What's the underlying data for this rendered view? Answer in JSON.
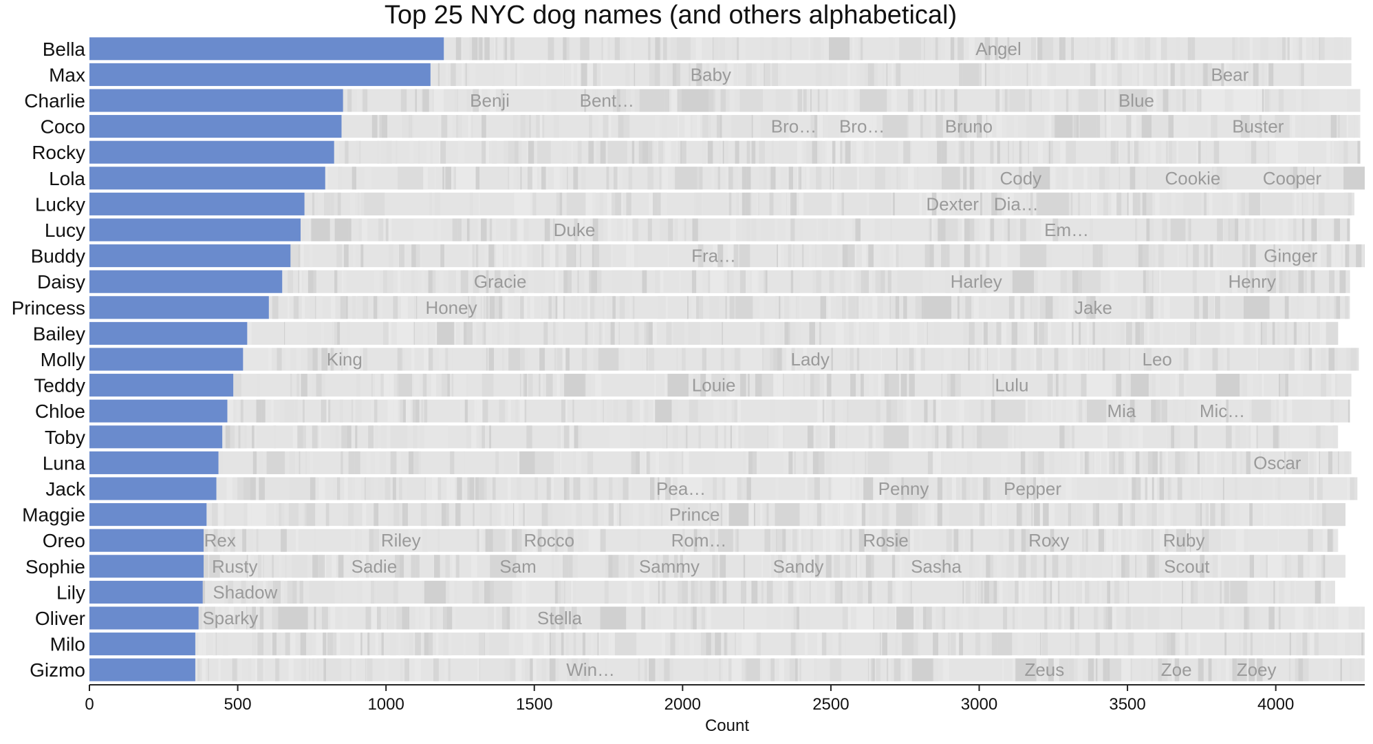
{
  "chart_data": {
    "type": "bar",
    "orientation": "horizontal",
    "stacked": true,
    "title": "Top 25 NYC dog names (and others alphabetical)",
    "xlabel": "Count",
    "ylabel": "",
    "xlim": [
      0,
      4300
    ],
    "xticks": [
      0,
      500,
      1000,
      1500,
      2000,
      2500,
      3000,
      3500,
      4000
    ],
    "xtick_labels": [
      "0",
      "500",
      "1000",
      "1500",
      "2000",
      "2500",
      "3000",
      "3500",
      "4000"
    ],
    "categories": [
      "Bella",
      "Max",
      "Charlie",
      "Coco",
      "Rocky",
      "Lola",
      "Lucky",
      "Lucy",
      "Buddy",
      "Daisy",
      "Princess",
      "Bailey",
      "Molly",
      "Teddy",
      "Chloe",
      "Toby",
      "Luna",
      "Jack",
      "Maggie",
      "Oreo",
      "Sophie",
      "Lily",
      "Oliver",
      "Milo",
      "Gizmo"
    ],
    "series": [
      {
        "name": "",
        "color": "#6a8bcd",
        "values": [
          1195,
          1150,
          855,
          850,
          825,
          795,
          725,
          712,
          678,
          650,
          605,
          532,
          518,
          485,
          465,
          448,
          435,
          428,
          395,
          385,
          385,
          382,
          368,
          357,
          357
        ]
      }
    ],
    "other_totals": [
      4255,
      4255,
      4285,
      4285,
      4285,
      4300,
      4265,
      4250,
      4300,
      4250,
      4250,
      4210,
      4280,
      4255,
      4250,
      4210,
      4255,
      4275,
      4235,
      4210,
      4235,
      4200,
      4300,
      4300,
      4300
    ],
    "other_labels": [
      [
        {
          "text": "Angel",
          "x": 3065
        }
      ],
      [
        {
          "text": "Baby",
          "x": 2095
        },
        {
          "text": "Bear",
          "x": 3845
        }
      ],
      [
        {
          "text": "Benji",
          "x": 1350
        },
        {
          "text": "Bent…",
          "x": 1745
        },
        {
          "text": "Blue",
          "x": 3530
        }
      ],
      [
        {
          "text": "Bro…",
          "x": 2375
        },
        {
          "text": "Bro…",
          "x": 2605
        },
        {
          "text": "Bruno",
          "x": 2965
        },
        {
          "text": "Buster",
          "x": 3940
        }
      ],
      [],
      [
        {
          "text": "Cody",
          "x": 3140
        },
        {
          "text": "Cookie",
          "x": 3720
        },
        {
          "text": "Cooper",
          "x": 4055
        }
      ],
      [
        {
          "text": "Dexter",
          "x": 2910
        },
        {
          "text": "Dia…",
          "x": 3125
        }
      ],
      [
        {
          "text": "Duke",
          "x": 1635
        },
        {
          "text": "Em…",
          "x": 3295
        }
      ],
      [
        {
          "text": "Fra…",
          "x": 2105
        },
        {
          "text": "Ginger",
          "x": 4050
        }
      ],
      [
        {
          "text": "Gracie",
          "x": 1385
        },
        {
          "text": "Harley",
          "x": 2990
        },
        {
          "text": "Henry",
          "x": 3920
        }
      ],
      [
        {
          "text": "Honey",
          "x": 1220
        },
        {
          "text": "Jake",
          "x": 3385
        }
      ],
      [],
      [
        {
          "text": "King",
          "x": 860
        },
        {
          "text": "Lady",
          "x": 2430
        },
        {
          "text": "Leo",
          "x": 3600
        }
      ],
      [
        {
          "text": "Louie",
          "x": 2105
        },
        {
          "text": "Lulu",
          "x": 3110
        }
      ],
      [
        {
          "text": "Mia",
          "x": 3480
        },
        {
          "text": "Mic…",
          "x": 3820
        }
      ],
      [],
      [
        {
          "text": "Oscar",
          "x": 4005
        }
      ],
      [
        {
          "text": "Pea…",
          "x": 1995
        },
        {
          "text": "Penny",
          "x": 2745
        },
        {
          "text": "Pepper",
          "x": 3180
        }
      ],
      [
        {
          "text": "Prince",
          "x": 2040
        }
      ],
      [
        {
          "text": "Rex",
          "x": 440
        },
        {
          "text": "Riley",
          "x": 1050
        },
        {
          "text": "Rocco",
          "x": 1550
        },
        {
          "text": "Rom…",
          "x": 2055
        },
        {
          "text": "Rosie",
          "x": 2685
        },
        {
          "text": "Roxy",
          "x": 3235
        },
        {
          "text": "Ruby",
          "x": 3690
        }
      ],
      [
        {
          "text": "Rusty",
          "x": 490
        },
        {
          "text": "Sadie",
          "x": 960
        },
        {
          "text": "Sam",
          "x": 1445
        },
        {
          "text": "Sammy",
          "x": 1955
        },
        {
          "text": "Sandy",
          "x": 2390
        },
        {
          "text": "Sasha",
          "x": 2855
        },
        {
          "text": "Scout",
          "x": 3700
        }
      ],
      [
        {
          "text": "Shadow",
          "x": 525
        }
      ],
      [
        {
          "text": "Sparky",
          "x": 475
        },
        {
          "text": "Stella",
          "x": 1585
        }
      ],
      [],
      [
        {
          "text": "Win…",
          "x": 1690
        },
        {
          "text": "Zeus",
          "x": 3220
        },
        {
          "text": "Zoe",
          "x": 3665
        },
        {
          "text": "Zoey",
          "x": 3935
        }
      ]
    ],
    "grid": false,
    "legend": "none"
  }
}
